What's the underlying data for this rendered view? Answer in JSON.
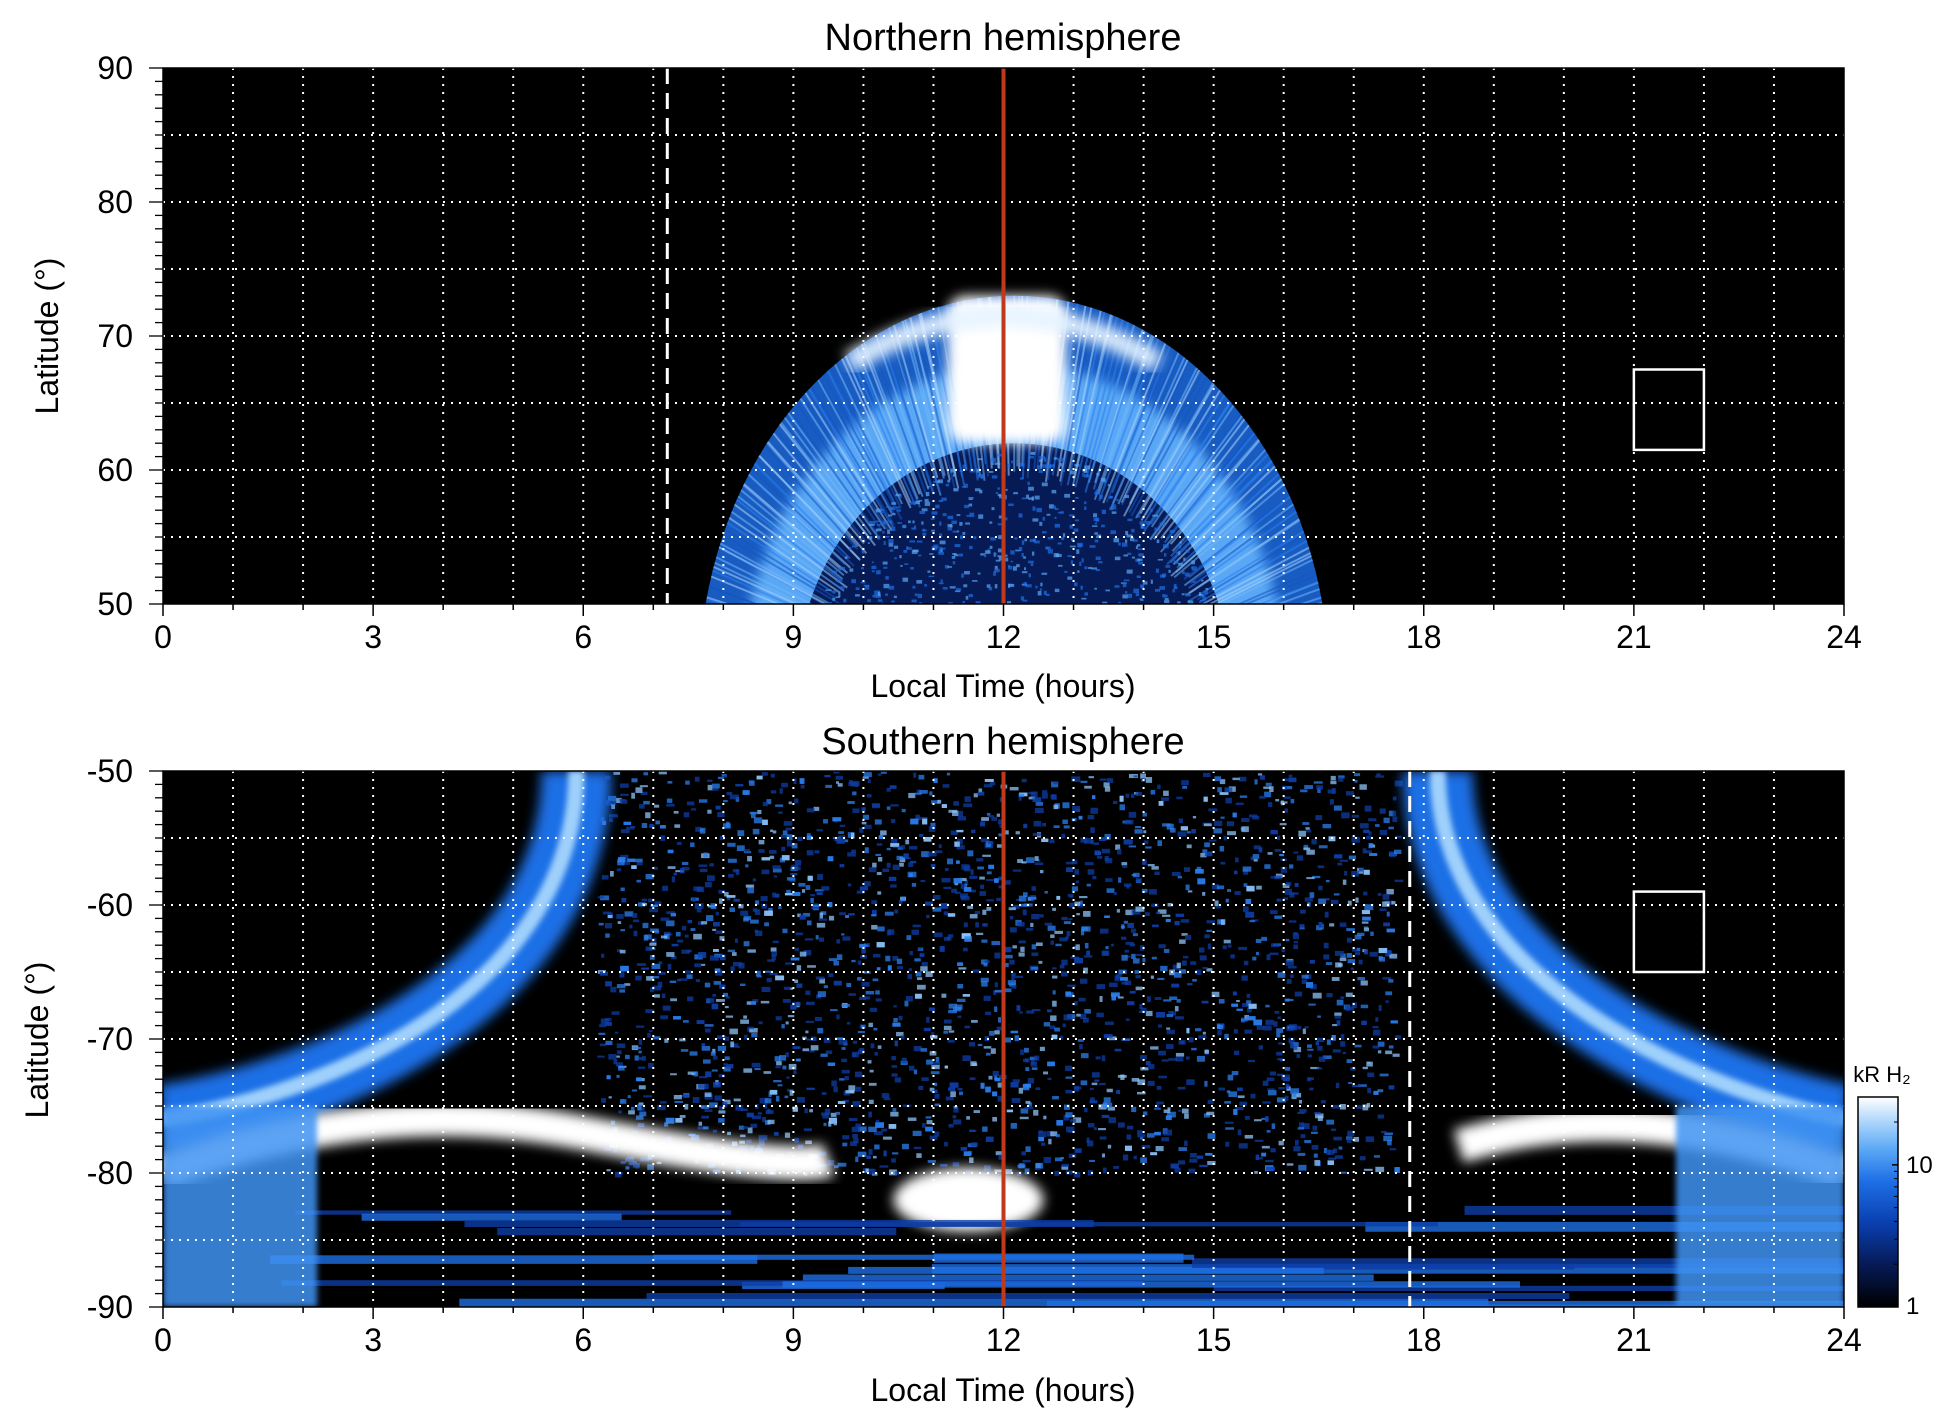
{
  "chart_data": [
    {
      "type": "heatmap",
      "title": "Northern hemisphere",
      "xlabel": "Local Time (hours)",
      "ylabel": "Latitude (°)",
      "xlim": [
        0,
        24
      ],
      "ylim": [
        50,
        90
      ],
      "xticks": [
        "0",
        "3",
        "6",
        "9",
        "12",
        "15",
        "18",
        "21",
        "24"
      ],
      "yticks": [
        "50",
        "60",
        "70",
        "80",
        "90"
      ],
      "grid": true,
      "noon_line_lt": 12,
      "dashed_line_lt": 7.2,
      "box": {
        "lt": [
          21,
          22
        ],
        "lat": [
          61.5,
          67.5
        ]
      },
      "emission": {
        "oval_center_lt": 12.15,
        "oval_center_lat": 44,
        "oval_lt_halfwidth_outer": 4.5,
        "oval_lat_top": 73,
        "oval_lt_halfwidth_inner": 3.1,
        "oval_lat_inner_top": 62,
        "bright_cusp_lt": [
          11.2,
          12.9
        ],
        "bright_cusp_lat": [
          62,
          73
        ]
      }
    },
    {
      "type": "heatmap",
      "title": "Southern hemisphere",
      "xlabel": "Local Time (hours)",
      "ylabel": "Latitude (°)",
      "xlim": [
        0,
        24
      ],
      "ylim": [
        -90,
        -50
      ],
      "xticks": [
        "0",
        "3",
        "6",
        "9",
        "12",
        "15",
        "18",
        "21",
        "24"
      ],
      "yticks": [
        "-90",
        "-80",
        "-70",
        "-60",
        "-50"
      ],
      "grid": true,
      "noon_line_lt": 12,
      "dashed_line_lt": 17.8,
      "box": {
        "lt": [
          21,
          22
        ],
        "lat": [
          -65,
          -59
        ]
      },
      "emission": {
        "dawn_arc_lt": [
          5.9,
          3.3
        ],
        "dusk_arc_lt": [
          18.2,
          21.3
        ],
        "bright_band_lat": -77,
        "cusp_spot_lt": 11.5,
        "cusp_spot_lat": -82
      }
    }
  ],
  "colorbar": {
    "label": "kR H₂",
    "ticks": [
      "1",
      "10"
    ],
    "min": 1,
    "max": 30,
    "colors": [
      "#000000",
      "#061a55",
      "#0a3fb0",
      "#1e6fe6",
      "#5aa8f5",
      "#b9dcfc",
      "#ffffff"
    ]
  },
  "colors": {
    "background": "#000000",
    "grid": "#ffffff",
    "noon_line": "#c0391b",
    "box": "#ffffff",
    "emission": "#2f8cf0"
  }
}
